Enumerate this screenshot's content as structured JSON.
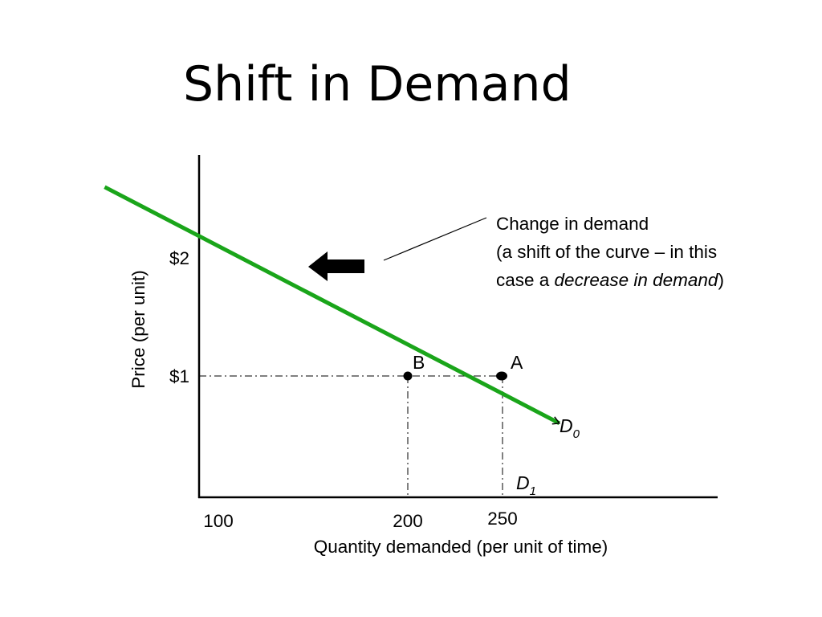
{
  "slide": {
    "title": "Shift in Demand"
  },
  "annotation": {
    "line1": "Change in demand",
    "line2": "(a shift of the curve – in this",
    "line3_prefix": "case a ",
    "line3_italic": "decrease in demand",
    "line3_suffix": ")"
  },
  "chart_data": {
    "type": "line",
    "title": "Shift in Demand",
    "xlabel": "Quantity demanded (per unit of time)",
    "ylabel": "Price (per unit)",
    "x_ticks": [
      {
        "label": "100",
        "value": 100
      },
      {
        "label": "200",
        "value": 200
      },
      {
        "label": "250",
        "value": 250
      }
    ],
    "y_ticks": [
      {
        "label": "$2",
        "value": 2
      },
      {
        "label": "$1",
        "value": 1
      }
    ],
    "series": [
      {
        "name": "D0",
        "color": "#1aa51a",
        "points": [
          [
            40,
            2.6
          ],
          [
            280,
            0.6
          ]
        ]
      }
    ],
    "curve_labels": [
      {
        "letter": "D",
        "subscript": "0"
      },
      {
        "letter": "D",
        "subscript": "1"
      }
    ],
    "points": [
      {
        "label": "B",
        "x": 200,
        "y": 1
      },
      {
        "label": "A",
        "x": 250,
        "y": 1
      }
    ],
    "shift_direction": "left",
    "grid": false
  }
}
